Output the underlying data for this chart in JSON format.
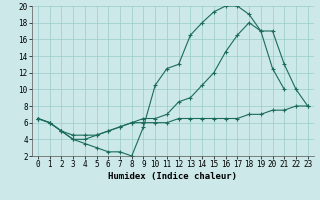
{
  "xlabel": "Humidex (Indice chaleur)",
  "bg_color": "#cce8e8",
  "line_color": "#1a6b5a",
  "grid_color": "#99cccc",
  "xlim": [
    -0.5,
    23.5
  ],
  "ylim": [
    2,
    20
  ],
  "xticks": [
    0,
    1,
    2,
    3,
    4,
    5,
    6,
    7,
    8,
    9,
    10,
    11,
    12,
    13,
    14,
    15,
    16,
    17,
    18,
    19,
    20,
    21,
    22,
    23
  ],
  "yticks": [
    2,
    4,
    6,
    8,
    10,
    12,
    14,
    16,
    18,
    20
  ],
  "line1_x": [
    0,
    1,
    2,
    3,
    4,
    5,
    6,
    7,
    8,
    9,
    10,
    11,
    12,
    13,
    14,
    15,
    16,
    17,
    18,
    19,
    20,
    21
  ],
  "line1_y": [
    6.5,
    6.0,
    5.0,
    4.0,
    3.5,
    3.0,
    2.5,
    2.5,
    2.0,
    5.5,
    10.5,
    12.5,
    13.0,
    16.5,
    18.0,
    19.3,
    20.0,
    20.0,
    19.0,
    17.0,
    12.5,
    10.0
  ],
  "line2_x": [
    0,
    1,
    2,
    3,
    4,
    5,
    6,
    7,
    8,
    9,
    10,
    11,
    12,
    13,
    14,
    15,
    16,
    17,
    18,
    19,
    20,
    21,
    22,
    23
  ],
  "line2_y": [
    6.5,
    6.0,
    5.0,
    4.0,
    4.0,
    4.5,
    5.0,
    5.5,
    6.0,
    6.5,
    6.5,
    7.0,
    8.5,
    9.0,
    10.5,
    12.0,
    14.5,
    16.5,
    18.0,
    17.0,
    17.0,
    13.0,
    10.0,
    8.0
  ],
  "line3_x": [
    0,
    1,
    2,
    3,
    4,
    5,
    6,
    7,
    8,
    9,
    10,
    11,
    12,
    13,
    14,
    15,
    16,
    17,
    18,
    19,
    20,
    21,
    22,
    23
  ],
  "line3_y": [
    6.5,
    6.0,
    5.0,
    4.5,
    4.5,
    4.5,
    5.0,
    5.5,
    6.0,
    6.0,
    6.0,
    6.0,
    6.5,
    6.5,
    6.5,
    6.5,
    6.5,
    6.5,
    7.0,
    7.0,
    7.5,
    7.5,
    8.0,
    8.0
  ]
}
